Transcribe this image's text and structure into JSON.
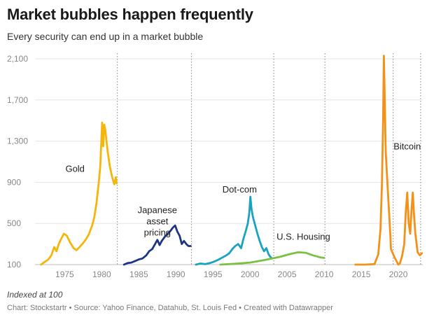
{
  "title": "Market bubbles happen frequently",
  "subtitle": "Every security can end up in a market bubble",
  "note": "Indexed at 100",
  "source": "Chart: Stockstartr • Source: Yahoo Finance, Datahub, St. Louis Fed • Created with Datawrapper",
  "chart_data": {
    "type": "line",
    "xlim": [
      1971,
      2023.3
    ],
    "ylim": [
      100,
      2100
    ],
    "yticks": [
      {
        "value": 100,
        "label": "100"
      },
      {
        "value": 500,
        "label": "500"
      },
      {
        "value": 900,
        "label": "900"
      },
      {
        "value": 1300,
        "label": "1,300"
      },
      {
        "value": 1700,
        "label": "1,700"
      },
      {
        "value": 2100,
        "label": "2,100"
      }
    ],
    "xticks": [
      {
        "value": 1975,
        "label": "1975"
      },
      {
        "value": 1980,
        "label": "1980"
      },
      {
        "value": 1985,
        "label": "1985"
      },
      {
        "value": 1990,
        "label": "1990"
      },
      {
        "value": 1995,
        "label": "1995"
      },
      {
        "value": 2000,
        "label": "2000"
      },
      {
        "value": 2005,
        "label": "2005"
      },
      {
        "value": 2010,
        "label": "2010"
      },
      {
        "value": 2015,
        "label": "2015"
      },
      {
        "value": 2020,
        "label": "2020"
      }
    ],
    "dividers": [
      1982.1,
      1992.1,
      2003.2,
      2010.1,
      2019.3,
      2023.0
    ],
    "grid": "horizontal",
    "series": [
      {
        "name": "Gold",
        "color": "#f5b60c",
        "label_x": 1976.4,
        "label_y": 1000,
        "points": [
          [
            1971.8,
            100
          ],
          [
            1972.3,
            125
          ],
          [
            1972.8,
            150
          ],
          [
            1973.2,
            190
          ],
          [
            1973.6,
            270
          ],
          [
            1973.9,
            230
          ],
          [
            1974.2,
            300
          ],
          [
            1974.6,
            360
          ],
          [
            1974.9,
            400
          ],
          [
            1975.3,
            380
          ],
          [
            1975.7,
            320
          ],
          [
            1976.2,
            260
          ],
          [
            1976.6,
            240
          ],
          [
            1977.0,
            270
          ],
          [
            1977.5,
            310
          ],
          [
            1977.9,
            350
          ],
          [
            1978.3,
            400
          ],
          [
            1978.7,
            480
          ],
          [
            1979.0,
            560
          ],
          [
            1979.3,
            700
          ],
          [
            1979.6,
            900
          ],
          [
            1979.8,
            1050
          ],
          [
            1979.95,
            1300
          ],
          [
            1980.05,
            1480
          ],
          [
            1980.2,
            1250
          ],
          [
            1980.35,
            1460
          ],
          [
            1980.5,
            1400
          ],
          [
            1980.8,
            1200
          ],
          [
            1981.1,
            1050
          ],
          [
            1981.4,
            950
          ],
          [
            1981.7,
            880
          ],
          [
            1981.9,
            950
          ],
          [
            1982.0,
            890
          ]
        ]
      },
      {
        "name": "Japanese asset pricing",
        "color": "#1e3584",
        "label_x": 1987.5,
        "label_y": 600,
        "points": [
          [
            1983.0,
            100
          ],
          [
            1983.5,
            115
          ],
          [
            1984.0,
            120
          ],
          [
            1984.5,
            135
          ],
          [
            1985.0,
            150
          ],
          [
            1985.5,
            160
          ],
          [
            1986.0,
            190
          ],
          [
            1986.4,
            230
          ],
          [
            1986.8,
            250
          ],
          [
            1987.2,
            300
          ],
          [
            1987.5,
            340
          ],
          [
            1987.8,
            290
          ],
          [
            1988.1,
            330
          ],
          [
            1988.5,
            370
          ],
          [
            1988.9,
            400
          ],
          [
            1989.3,
            430
          ],
          [
            1989.6,
            460
          ],
          [
            1989.9,
            480
          ],
          [
            1990.2,
            420
          ],
          [
            1990.5,
            380
          ],
          [
            1990.8,
            300
          ],
          [
            1991.1,
            330
          ],
          [
            1991.4,
            300
          ],
          [
            1991.7,
            280
          ],
          [
            1992.0,
            280
          ]
        ]
      },
      {
        "name": "Dot-com",
        "color": "#1aa3c0",
        "label_x": 1998.6,
        "label_y": 800,
        "points": [
          [
            1992.7,
            100
          ],
          [
            1993.3,
            110
          ],
          [
            1994.0,
            105
          ],
          [
            1994.6,
            115
          ],
          [
            1995.2,
            130
          ],
          [
            1995.8,
            150
          ],
          [
            1996.3,
            170
          ],
          [
            1996.8,
            190
          ],
          [
            1997.2,
            210
          ],
          [
            1997.6,
            250
          ],
          [
            1998.0,
            280
          ],
          [
            1998.4,
            300
          ],
          [
            1998.8,
            260
          ],
          [
            1999.1,
            350
          ],
          [
            1999.4,
            420
          ],
          [
            1999.7,
            500
          ],
          [
            1999.9,
            600
          ],
          [
            2000.05,
            760
          ],
          [
            2000.2,
            640
          ],
          [
            2000.4,
            560
          ],
          [
            2000.7,
            480
          ],
          [
            2001.0,
            400
          ],
          [
            2001.3,
            330
          ],
          [
            2001.6,
            270
          ],
          [
            2001.9,
            230
          ],
          [
            2002.2,
            260
          ],
          [
            2002.5,
            200
          ],
          [
            2002.8,
            170
          ],
          [
            2003.0,
            160
          ]
        ]
      },
      {
        "name": "U.S. Housing",
        "color": "#7ac143",
        "label_x": 2007.2,
        "label_y": 340,
        "points": [
          [
            1996.0,
            100
          ],
          [
            1998.0,
            108
          ],
          [
            2000.0,
            120
          ],
          [
            2002.0,
            145
          ],
          [
            2004.0,
            175
          ],
          [
            2005.5,
            205
          ],
          [
            2006.5,
            220
          ],
          [
            2007.5,
            215
          ],
          [
            2008.5,
            190
          ],
          [
            2009.5,
            170
          ],
          [
            2010.0,
            165
          ]
        ]
      },
      {
        "name": "Bitcoin",
        "color": "#f49118",
        "label_x": 2021.2,
        "label_y": 1220,
        "points": [
          [
            2014.2,
            100
          ],
          [
            2015.5,
            100
          ],
          [
            2016.8,
            105
          ],
          [
            2017.3,
            200
          ],
          [
            2017.6,
            450
          ],
          [
            2017.8,
            900
          ],
          [
            2017.95,
            1500
          ],
          [
            2018.05,
            2130
          ],
          [
            2018.15,
            1800
          ],
          [
            2018.3,
            1200
          ],
          [
            2018.45,
            1000
          ],
          [
            2018.6,
            800
          ],
          [
            2018.8,
            550
          ],
          [
            2018.95,
            350
          ],
          [
            2019.0,
            250
          ],
          [
            2019.5,
            170
          ],
          [
            2020.0,
            100
          ],
          [
            2020.2,
            110
          ],
          [
            2020.5,
            180
          ],
          [
            2020.8,
            300
          ],
          [
            2021.0,
            600
          ],
          [
            2021.2,
            800
          ],
          [
            2021.4,
            500
          ],
          [
            2021.6,
            400
          ],
          [
            2021.8,
            650
          ],
          [
            2021.95,
            800
          ],
          [
            2022.1,
            600
          ],
          [
            2022.3,
            400
          ],
          [
            2022.6,
            220
          ],
          [
            2022.9,
            190
          ],
          [
            2023.2,
            210
          ]
        ]
      }
    ]
  }
}
